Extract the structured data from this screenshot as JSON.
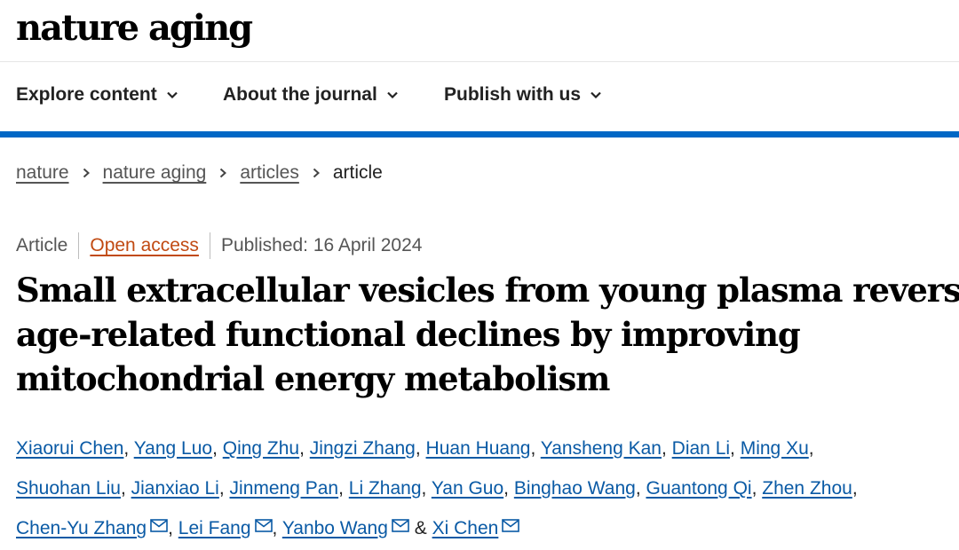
{
  "site": {
    "logo": "nature aging"
  },
  "nav": {
    "items": [
      {
        "label": "Explore content"
      },
      {
        "label": "About the journal"
      },
      {
        "label": "Publish with us"
      }
    ],
    "accent_color": "#0067c5"
  },
  "breadcrumb": {
    "items": [
      {
        "label": "nature"
      },
      {
        "label": "nature aging"
      },
      {
        "label": "articles"
      }
    ],
    "current": "article"
  },
  "meta": {
    "type": "Article",
    "access": "Open access",
    "access_color": "#c14a12",
    "published": "Published: 16 April 2024"
  },
  "title": {
    "lines": [
      "Small extracellular vesicles from young plasma reverse",
      "age-related functional declines by improving",
      "mitochondrial energy metabolism"
    ]
  },
  "authors": {
    "list": [
      "Xiaorui Chen",
      "Yang Luo",
      "Qing Zhu",
      "Jingzi Zhang",
      "Huan Huang",
      "Yansheng Kan",
      "Dian Li",
      "Ming Xu",
      "Shuohan Liu",
      "Jianxiao Li",
      "Jinmeng Pan",
      "Li Zhang",
      "Yan Guo",
      "Binghao Wang",
      "Guantong Qi",
      "Zhen Zhou",
      "Chen-Yu Zhang",
      "Lei Fang",
      "Yanbo Wang",
      "Xi Chen"
    ],
    "conjunction": "&",
    "link_color": "#0a5aa5",
    "mail_icon": "envelope-icon"
  }
}
